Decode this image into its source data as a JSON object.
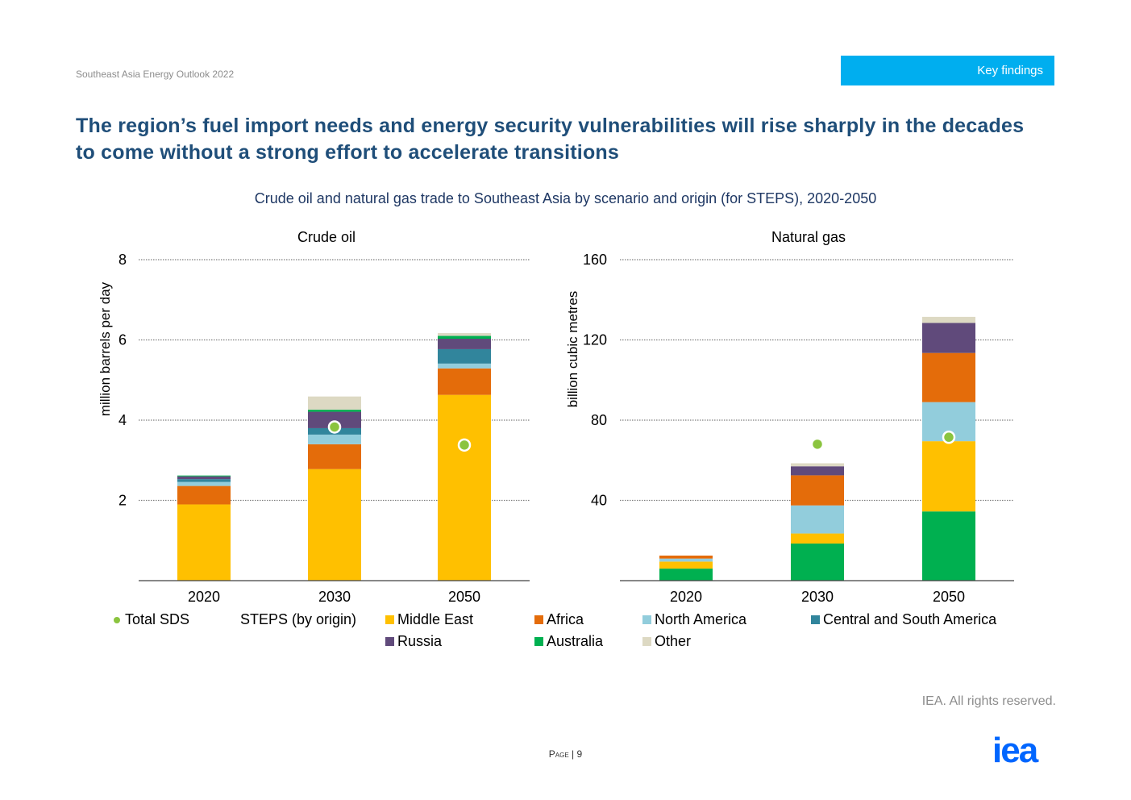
{
  "header": {
    "report_name": "Southeast Asia Energy Outlook 2022",
    "section_tab": "Key findings"
  },
  "headline": "The region’s fuel import needs and energy security vulnerabilities will rise sharply in the decades to come without a strong effort to accelerate transitions",
  "figure_title": "Crude oil and natural gas trade to Southeast Asia by scenario and origin (for STEPS), 2020-2050",
  "legend": {
    "total_sds": "Total SDS",
    "steps_label": "STEPS (by origin)",
    "middle_east": "Middle East",
    "africa": "Africa",
    "north_america": "North America",
    "central_south_america": "Central and South America",
    "russia": "Russia",
    "australia": "Australia",
    "other": "Other"
  },
  "colors": {
    "middle_east": "#ffc000",
    "africa": "#e46c0a",
    "north_america": "#92cddc",
    "central_south_america": "#31859c",
    "russia": "#604a7b",
    "australia": "#00b050",
    "other": "#ddd9c3",
    "total_sds": "#8bc43f",
    "title_blue": "#1f4e79",
    "tab_blue": "#00aeef",
    "logo_blue": "#0066ff"
  },
  "chart_data": [
    {
      "type": "bar",
      "stacked": true,
      "title": "Crude oil",
      "ylabel": "million barrels per day",
      "ylim": [
        0,
        8
      ],
      "yticks": [
        "2",
        "4",
        "6",
        "8"
      ],
      "categories": [
        "2020",
        "2030",
        "2050"
      ],
      "series": [
        {
          "name": "Middle East",
          "key": "middle_east",
          "values": [
            1.9,
            2.78,
            4.63
          ]
        },
        {
          "name": "Africa",
          "key": "africa",
          "values": [
            0.46,
            0.62,
            0.66
          ]
        },
        {
          "name": "North America",
          "key": "north_america",
          "values": [
            0.1,
            0.24,
            0.12
          ]
        },
        {
          "name": "Central and South America",
          "key": "central_south_america",
          "values": [
            0.07,
            0.16,
            0.36
          ]
        },
        {
          "name": "Russia",
          "key": "russia",
          "values": [
            0.07,
            0.41,
            0.26
          ]
        },
        {
          "name": "Australia",
          "key": "australia",
          "values": [
            0.02,
            0.05,
            0.07
          ]
        },
        {
          "name": "Other",
          "key": "other",
          "values": [
            0.0,
            0.33,
            0.07
          ]
        }
      ],
      "total_sds": [
        null,
        3.83,
        3.38
      ],
      "grid": true
    },
    {
      "type": "bar",
      "stacked": true,
      "title": "Natural gas",
      "ylabel": "billion cubic metres",
      "ylim": [
        0,
        160
      ],
      "yticks": [
        "40",
        "80",
        "120",
        "160"
      ],
      "categories": [
        "2020",
        "2030",
        "2050"
      ],
      "series": [
        {
          "name": "Australia",
          "key": "australia",
          "values": [
            6,
            18.5,
            34.5
          ]
        },
        {
          "name": "Middle East",
          "key": "middle_east",
          "values": [
            3.5,
            5,
            35
          ]
        },
        {
          "name": "North America",
          "key": "north_america",
          "values": [
            1.5,
            14,
            19.5
          ]
        },
        {
          "name": "Africa",
          "key": "africa",
          "values": [
            1.5,
            15,
            24.5
          ]
        },
        {
          "name": "Russia",
          "key": "russia",
          "values": [
            0,
            4.5,
            15
          ]
        },
        {
          "name": "Other",
          "key": "other",
          "values": [
            0,
            1.5,
            3
          ]
        }
      ],
      "total_sds": [
        null,
        68,
        71.5
      ],
      "grid": true
    }
  ],
  "footer": {
    "rights": "IEA. All rights reserved.",
    "page_label": "Page",
    "page_number": "9",
    "logo_text": "iea"
  }
}
